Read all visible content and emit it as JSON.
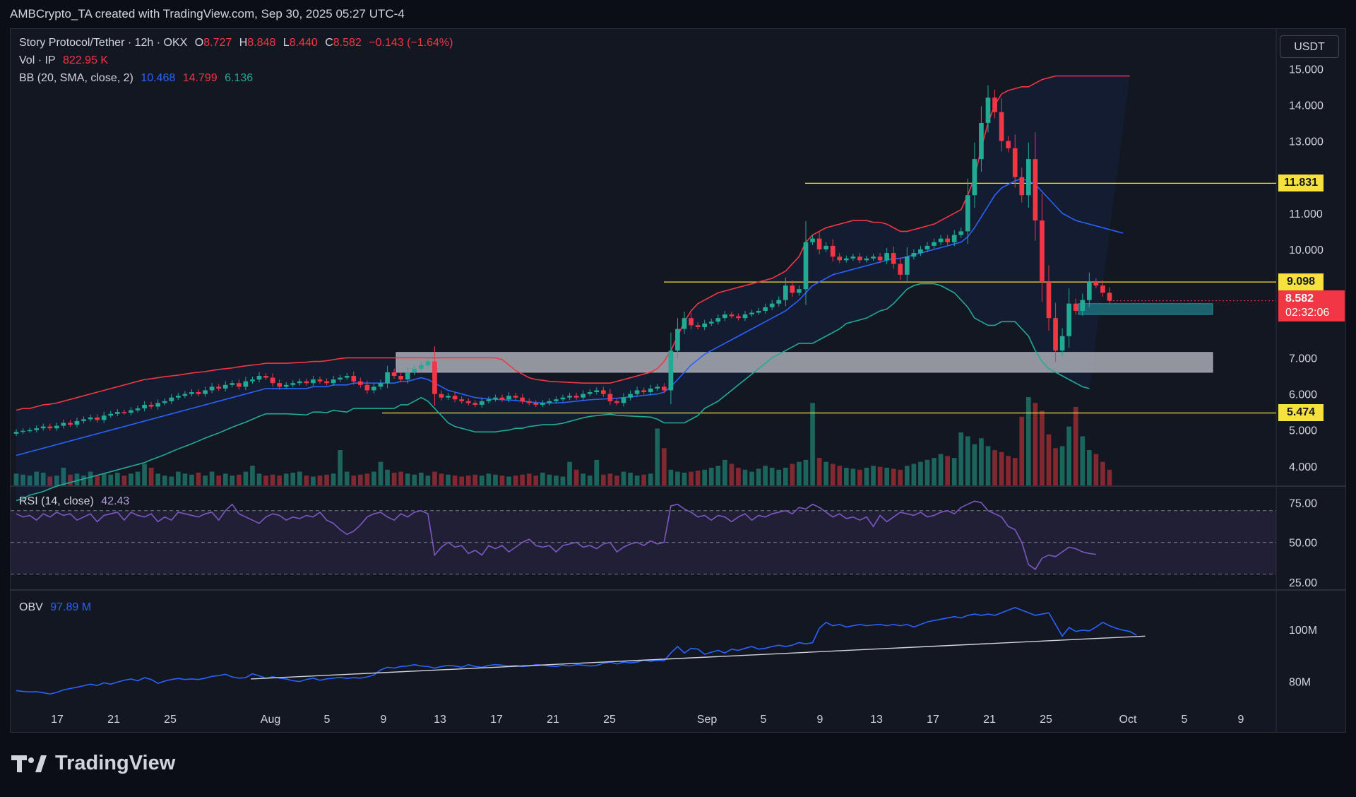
{
  "attribution": "AMBCrypto_TA created with TradingView.com, Sep 30, 2025 05:27 UTC-4",
  "legend": {
    "symbol": "Story Protocol/Tether · 12h · OKX",
    "ohlc": {
      "o_label": "O",
      "o": "8.727",
      "h_label": "H",
      "h": "8.848",
      "l_label": "L",
      "l": "8.440",
      "c_label": "C",
      "c": "8.582",
      "change": "−0.143 (−1.64%)"
    },
    "vol_label": "Vol · IP",
    "vol_value": "822.95 K",
    "bb_label": "BB (20, SMA, close, 2)",
    "bb_basis": "10.468",
    "bb_upper": "14.799",
    "bb_lower": "6.136",
    "rsi_label": "RSI (14, close)",
    "rsi_value": "42.43",
    "obv_label": "OBV",
    "obv_value": "97.89 M"
  },
  "currency_button": "USDT",
  "price_tags": {
    "level_1": "11.831",
    "level_2": "9.098",
    "level_3": "5.474",
    "last_price": "8.582",
    "countdown": "02:32:06"
  },
  "footer_brand": "TradingView",
  "colors": {
    "up": "#22ab94",
    "down": "#f23645",
    "bb_basis": "#2962ff",
    "bb_upper": "#f23645",
    "bb_lower": "#22ab94",
    "rsi": "#7e57c2",
    "obv": "#2962ff",
    "level": "#f7e13e",
    "zone": "#b2b5be"
  },
  "chart_data": [
    {
      "type": "candlestick",
      "panel": "price",
      "x_ticks": [
        "17",
        "21",
        "25",
        "Aug",
        "5",
        "9",
        "13",
        "17",
        "21",
        "25",
        "Sep",
        "5",
        "9",
        "13",
        "17",
        "21",
        "25",
        "Oct",
        "5",
        "9"
      ],
      "y_ticks": [
        "15.000",
        "14.000",
        "13.000",
        "12.000",
        "11.000",
        "10.000",
        "9.000",
        "8.000",
        "7.000",
        "6.000",
        "5.000",
        "4.000"
      ],
      "y_axis_values": [
        15,
        14,
        13,
        12,
        11,
        10,
        9,
        8,
        7,
        6,
        5,
        4
      ],
      "ylim": [
        3.45,
        16.1
      ],
      "horizontal_levels": [
        11.831,
        9.098,
        5.474
      ],
      "zones": [
        {
          "from": 6.6,
          "to": 7.15
        },
        {
          "from": 8.2,
          "to": 8.5
        }
      ],
      "close_series": [
        4.95,
        4.98,
        5.0,
        5.05,
        5.1,
        5.05,
        5.12,
        5.2,
        5.15,
        5.25,
        5.3,
        5.35,
        5.28,
        5.4,
        5.45,
        5.5,
        5.48,
        5.55,
        5.6,
        5.7,
        5.65,
        5.75,
        5.8,
        5.9,
        5.95,
        6.0,
        6.05,
        6.0,
        6.1,
        6.2,
        6.15,
        6.25,
        6.3,
        6.2,
        6.35,
        6.4,
        6.5,
        6.45,
        6.3,
        6.2,
        6.25,
        6.3,
        6.35,
        6.3,
        6.4,
        6.35,
        6.3,
        6.4,
        6.45,
        6.5,
        6.35,
        6.25,
        6.1,
        6.2,
        6.3,
        6.6,
        6.5,
        6.4,
        6.6,
        6.7,
        6.8,
        6.9,
        6.0,
        5.9,
        5.95,
        5.85,
        5.8,
        5.75,
        5.7,
        5.8,
        5.85,
        5.9,
        5.85,
        5.95,
        5.9,
        5.8,
        5.75,
        5.7,
        5.75,
        5.8,
        5.85,
        5.9,
        5.95,
        5.9,
        6.0,
        6.05,
        6.1,
        6.0,
        5.8,
        5.75,
        5.9,
        6.0,
        6.1,
        6.05,
        6.15,
        6.2,
        6.1,
        7.2,
        7.8,
        8.1,
        7.9,
        7.85,
        7.95,
        8.0,
        8.1,
        8.2,
        8.15,
        8.1,
        8.2,
        8.25,
        8.3,
        8.4,
        8.5,
        8.6,
        9.0,
        8.8,
        8.9,
        10.2,
        10.3,
        10.0,
        10.1,
        9.8,
        9.7,
        9.75,
        9.8,
        9.7,
        9.75,
        9.8,
        9.7,
        9.9,
        9.6,
        9.3,
        9.8,
        9.9,
        10.0,
        10.1,
        10.2,
        10.3,
        10.2,
        10.4,
        10.5,
        11.5,
        12.5,
        13.5,
        14.2,
        13.8,
        13.0,
        12.8,
        12.0,
        11.5,
        12.5,
        10.8,
        9.1,
        8.1,
        7.2,
        7.6,
        8.5,
        8.3,
        8.6,
        9.1,
        9.0,
        8.8,
        8.58
      ],
      "volume_series_k": [
        600,
        550,
        500,
        700,
        650,
        450,
        500,
        900,
        550,
        600,
        500,
        700,
        500,
        600,
        550,
        650,
        500,
        600,
        700,
        1100,
        900,
        600,
        500,
        450,
        700,
        600,
        550,
        650,
        500,
        700,
        500,
        600,
        500,
        550,
        700,
        1000,
        600,
        500,
        550,
        500,
        600,
        650,
        700,
        500,
        450,
        500,
        550,
        600,
        1800,
        700,
        500,
        550,
        600,
        700,
        1200,
        800,
        650,
        700,
        600,
        550,
        650,
        500,
        700,
        600,
        550,
        500,
        450,
        500,
        550,
        500,
        600,
        550,
        500,
        450,
        500,
        550,
        600,
        500,
        650,
        550,
        500,
        450,
        1200,
        800,
        600,
        500,
        1300,
        550,
        600,
        500,
        700,
        650,
        500,
        550,
        600,
        2900,
        1900,
        800,
        700,
        650,
        700,
        750,
        800,
        900,
        1000,
        1300,
        1100,
        900,
        800,
        700,
        850,
        1000,
        900,
        800,
        900,
        1100,
        1200,
        1300,
        4200,
        1400,
        1200,
        1100,
        1000,
        900,
        850,
        800,
        900,
        1000,
        950,
        900,
        850,
        800,
        1000,
        1100,
        1200,
        1300,
        1400,
        1600,
        1500,
        1400,
        2700,
        2500,
        2100,
        2400,
        2000,
        1800,
        1700,
        1500,
        1400,
        3500,
        4500,
        4200,
        3800,
        2600,
        1900,
        2000,
        3000,
        4000,
        2500,
        1800,
        1600,
        1200,
        800
      ],
      "bb_upper": [
        5.55,
        5.6,
        5.6,
        5.65,
        5.7,
        5.72,
        5.75,
        5.8,
        5.85,
        5.9,
        5.95,
        6.0,
        6.05,
        6.1,
        6.15,
        6.2,
        6.25,
        6.3,
        6.35,
        6.4,
        6.42,
        6.45,
        6.48,
        6.5,
        6.52,
        6.55,
        6.58,
        6.6,
        6.62,
        6.65,
        6.68,
        6.7,
        6.72,
        6.75,
        6.78,
        6.8,
        6.82,
        6.85,
        6.85,
        6.85,
        6.85,
        6.86,
        6.87,
        6.88,
        6.9,
        6.9,
        6.92,
        6.95,
        6.98,
        7.0,
        7.0,
        7.0,
        7.0,
        7.0,
        7.0,
        7.0,
        7.0,
        7.0,
        7.0,
        7.0,
        7.0,
        7.0,
        7.0,
        7.0,
        7.0,
        7.0,
        7.0,
        7.0,
        7.0,
        7.0,
        7.0,
        7.0,
        6.95,
        6.8,
        6.65,
        6.55,
        6.45,
        6.4,
        6.38,
        6.35,
        6.34,
        6.33,
        6.32,
        6.31,
        6.3,
        6.3,
        6.3,
        6.3,
        6.3,
        6.35,
        6.4,
        6.45,
        6.5,
        6.55,
        6.6,
        6.7,
        6.9,
        7.2,
        7.6,
        8.0,
        8.3,
        8.5,
        8.6,
        8.7,
        8.8,
        8.85,
        8.9,
        8.95,
        9.0,
        9.05,
        9.1,
        9.15,
        9.2,
        9.3,
        9.4,
        9.6,
        9.8,
        10.2,
        10.4,
        10.5,
        10.6,
        10.65,
        10.7,
        10.75,
        10.8,
        10.8,
        10.8,
        10.75,
        10.75,
        10.7,
        10.6,
        10.5,
        10.5,
        10.55,
        10.6,
        10.65,
        10.7,
        10.8,
        10.9,
        11.0,
        11.1,
        11.5,
        12.0,
        12.8,
        13.5,
        14.0,
        14.3,
        14.4,
        14.45,
        14.5,
        14.5,
        14.6,
        14.7,
        14.75,
        14.8,
        14.8,
        14.8,
        14.8,
        14.8,
        14.8,
        14.8,
        14.8,
        14.8,
        14.8,
        14.8,
        14.8
      ],
      "bb_basis": [
        4.3,
        4.35,
        4.4,
        4.45,
        4.5,
        4.55,
        4.6,
        4.65,
        4.7,
        4.75,
        4.8,
        4.85,
        4.9,
        4.95,
        5.0,
        5.05,
        5.1,
        5.15,
        5.2,
        5.25,
        5.3,
        5.35,
        5.4,
        5.45,
        5.5,
        5.55,
        5.6,
        5.65,
        5.7,
        5.75,
        5.8,
        5.85,
        5.9,
        5.95,
        6.0,
        6.05,
        6.1,
        6.15,
        6.15,
        6.15,
        6.15,
        6.15,
        6.15,
        6.15,
        6.2,
        6.2,
        6.2,
        6.25,
        6.25,
        6.25,
        6.3,
        6.3,
        6.3,
        6.3,
        6.3,
        6.3,
        6.3,
        6.35,
        6.35,
        6.4,
        6.45,
        6.4,
        6.3,
        6.2,
        6.1,
        6.05,
        6.0,
        5.95,
        5.9,
        5.88,
        5.86,
        5.85,
        5.84,
        5.83,
        5.82,
        5.8,
        5.78,
        5.76,
        5.75,
        5.75,
        5.75,
        5.76,
        5.78,
        5.8,
        5.82,
        5.84,
        5.85,
        5.86,
        5.87,
        5.88,
        5.9,
        5.92,
        5.94,
        5.96,
        5.98,
        6.0,
        6.05,
        6.2,
        6.4,
        6.6,
        6.8,
        6.95,
        7.1,
        7.2,
        7.3,
        7.4,
        7.5,
        7.6,
        7.7,
        7.8,
        7.9,
        8.0,
        8.1,
        8.2,
        8.3,
        8.45,
        8.6,
        8.8,
        9.0,
        9.1,
        9.2,
        9.3,
        9.35,
        9.4,
        9.45,
        9.5,
        9.55,
        9.6,
        9.65,
        9.7,
        9.75,
        9.75,
        9.8,
        9.85,
        9.9,
        9.95,
        10.0,
        10.05,
        10.1,
        10.15,
        10.2,
        10.35,
        10.6,
        10.9,
        11.2,
        11.5,
        11.7,
        11.8,
        11.9,
        11.95,
        11.9,
        11.8,
        11.6,
        11.4,
        11.2,
        11.0,
        10.9,
        10.8,
        10.75,
        10.7,
        10.65,
        10.6,
        10.55,
        10.5,
        10.45
      ],
      "bb_lower": [
        3.05,
        3.1,
        3.2,
        3.25,
        3.3,
        3.38,
        3.45,
        3.5,
        3.55,
        3.6,
        3.65,
        3.7,
        3.75,
        3.8,
        3.85,
        3.9,
        3.95,
        4.0,
        4.05,
        4.1,
        4.18,
        4.25,
        4.32,
        4.4,
        4.48,
        4.55,
        4.62,
        4.7,
        4.78,
        4.85,
        4.92,
        5.0,
        5.08,
        5.15,
        5.22,
        5.3,
        5.38,
        5.45,
        5.45,
        5.45,
        5.45,
        5.44,
        5.43,
        5.42,
        5.5,
        5.5,
        5.48,
        5.55,
        5.52,
        5.5,
        5.6,
        5.6,
        5.6,
        5.6,
        5.6,
        5.6,
        5.6,
        5.7,
        5.7,
        5.8,
        5.9,
        5.8,
        5.6,
        5.4,
        5.2,
        5.1,
        5.05,
        5.0,
        4.95,
        4.95,
        4.95,
        4.95,
        4.98,
        5.0,
        5.05,
        5.05,
        5.1,
        5.12,
        5.15,
        5.15,
        5.16,
        5.19,
        5.24,
        5.29,
        5.34,
        5.38,
        5.4,
        5.42,
        5.44,
        5.41,
        5.4,
        5.39,
        5.38,
        5.37,
        5.36,
        5.3,
        5.2,
        5.2,
        5.2,
        5.2,
        5.3,
        5.4,
        5.6,
        5.7,
        5.8,
        5.95,
        6.1,
        6.25,
        6.4,
        6.55,
        6.7,
        6.85,
        7.0,
        7.1,
        7.2,
        7.3,
        7.4,
        7.4,
        7.4,
        7.5,
        7.6,
        7.7,
        7.8,
        7.95,
        8.0,
        8.05,
        8.1,
        8.2,
        8.3,
        8.35,
        8.5,
        8.7,
        8.9,
        9.0,
        9.05,
        9.05,
        9.05,
        9.0,
        8.9,
        8.8,
        8.6,
        8.4,
        8.1,
        8.0,
        7.9,
        7.9,
        8.0,
        8.0,
        8.0,
        7.8,
        7.6,
        7.2,
        6.9,
        6.7,
        6.6,
        6.5,
        6.4,
        6.3,
        6.2,
        6.15
      ]
    },
    {
      "type": "line",
      "panel": "rsi",
      "name": "RSI (14, close)",
      "y_ticks": [
        "75.00",
        "50.00",
        "25.00"
      ],
      "y_axis_values": [
        75,
        50,
        25
      ],
      "ylim": [
        20,
        85
      ],
      "band": [
        30,
        70
      ],
      "values": [
        68,
        66,
        67,
        64,
        68,
        66,
        69,
        67,
        68,
        64,
        66,
        68,
        63,
        67,
        68,
        69,
        64,
        69,
        67,
        66,
        68,
        63,
        66,
        64,
        69,
        68,
        67,
        66,
        68,
        69,
        64,
        70,
        74,
        68,
        66,
        64,
        62,
        66,
        68,
        67,
        64,
        66,
        65,
        67,
        66,
        69,
        64,
        62,
        58,
        55,
        57,
        61,
        66,
        68,
        69,
        66,
        64,
        68,
        66,
        69,
        70,
        68,
        42,
        47,
        50,
        47,
        48,
        43,
        45,
        42,
        48,
        46,
        48,
        44,
        47,
        50,
        52,
        48,
        47,
        48,
        44,
        48,
        49,
        50,
        47,
        48,
        46,
        49,
        50,
        44,
        47,
        49,
        50,
        48,
        51,
        49,
        50,
        73,
        74,
        71,
        69,
        66,
        67,
        64,
        67,
        66,
        63,
        66,
        68,
        64,
        67,
        66,
        68,
        69,
        70,
        68,
        72,
        71,
        74,
        72,
        69,
        66,
        68,
        65,
        66,
        64,
        66,
        60,
        67,
        63,
        66,
        69,
        68,
        67,
        69,
        66,
        67,
        69,
        70,
        68,
        72,
        74,
        76,
        75,
        70,
        68,
        66,
        60,
        58,
        50,
        36,
        33,
        40,
        42,
        41,
        44,
        47,
        46,
        44,
        43,
        42.43
      ]
    },
    {
      "type": "line",
      "panel": "obv",
      "name": "OBV",
      "y_ticks": [
        "100M",
        "80M"
      ],
      "y_axis_values": [
        100,
        80
      ],
      "ylim": [
        72,
        115
      ],
      "values_m": [
        76.5,
        76.2,
        76.0,
        76.1,
        75.7,
        75.2,
        75.8,
        76.8,
        77.3,
        77.8,
        78.4,
        79.0,
        78.5,
        79.5,
        79.0,
        79.8,
        80.5,
        81.0,
        80.3,
        81.5,
        80.8,
        79.3,
        80.2,
        80.8,
        81.2,
        80.8,
        81.0,
        80.8,
        81.3,
        82.0,
        82.3,
        82.8,
        81.8,
        81.3,
        81.5,
        83.0,
        82.2,
        81.3,
        81.8,
        81.3,
        81.0,
        80.3,
        80.0,
        80.8,
        81.3,
        80.5,
        81.0,
        81.3,
        81.6,
        81.2,
        81.5,
        81.3,
        81.8,
        82.5,
        84.5,
        85.5,
        85.2,
        85.8,
        86.0,
        86.5,
        86.0,
        85.8,
        85.2,
        85.8,
        86.2,
        86.0,
        85.5,
        86.5,
        85.8,
        85.5,
        86.2,
        86.5,
        86.3,
        86.0,
        86.2,
        85.8,
        86.0,
        86.5,
        86.3,
        86.0,
        85.8,
        86.3,
        86.0,
        86.5,
        86.3,
        86.0,
        86.2,
        87.0,
        87.5,
        86.8,
        87.5,
        87.2,
        87.5,
        88.3,
        87.8,
        88.2,
        88.0,
        91.0,
        93.5,
        91.0,
        92.8,
        92.5,
        90.5,
        91.3,
        92.0,
        91.0,
        92.5,
        92.0,
        92.8,
        93.5,
        92.5,
        92.8,
        93.5,
        94.0,
        93.5,
        94.0,
        95.0,
        94.5,
        95.0,
        100.5,
        102.8,
        101.5,
        102.0,
        101.0,
        101.5,
        102.0,
        101.5,
        101.8,
        102.0,
        101.5,
        102.0,
        101.5,
        102.0,
        101.0,
        102.0,
        103.0,
        103.5,
        104.0,
        104.5,
        105.0,
        104.5,
        105.5,
        106.0,
        105.5,
        106.0,
        105.5,
        106.5,
        107.5,
        108.5,
        107.5,
        106.5,
        105.5,
        106.0,
        106.5,
        102.0,
        97.5,
        100.8,
        99.3,
        99.8,
        99.5,
        101.0,
        102.8,
        101.5,
        100.5,
        99.8,
        99.3,
        97.89
      ],
      "trendline_m": [
        [
          0.18,
          81.0
        ],
        [
          0.85,
          97.5
        ]
      ]
    }
  ]
}
